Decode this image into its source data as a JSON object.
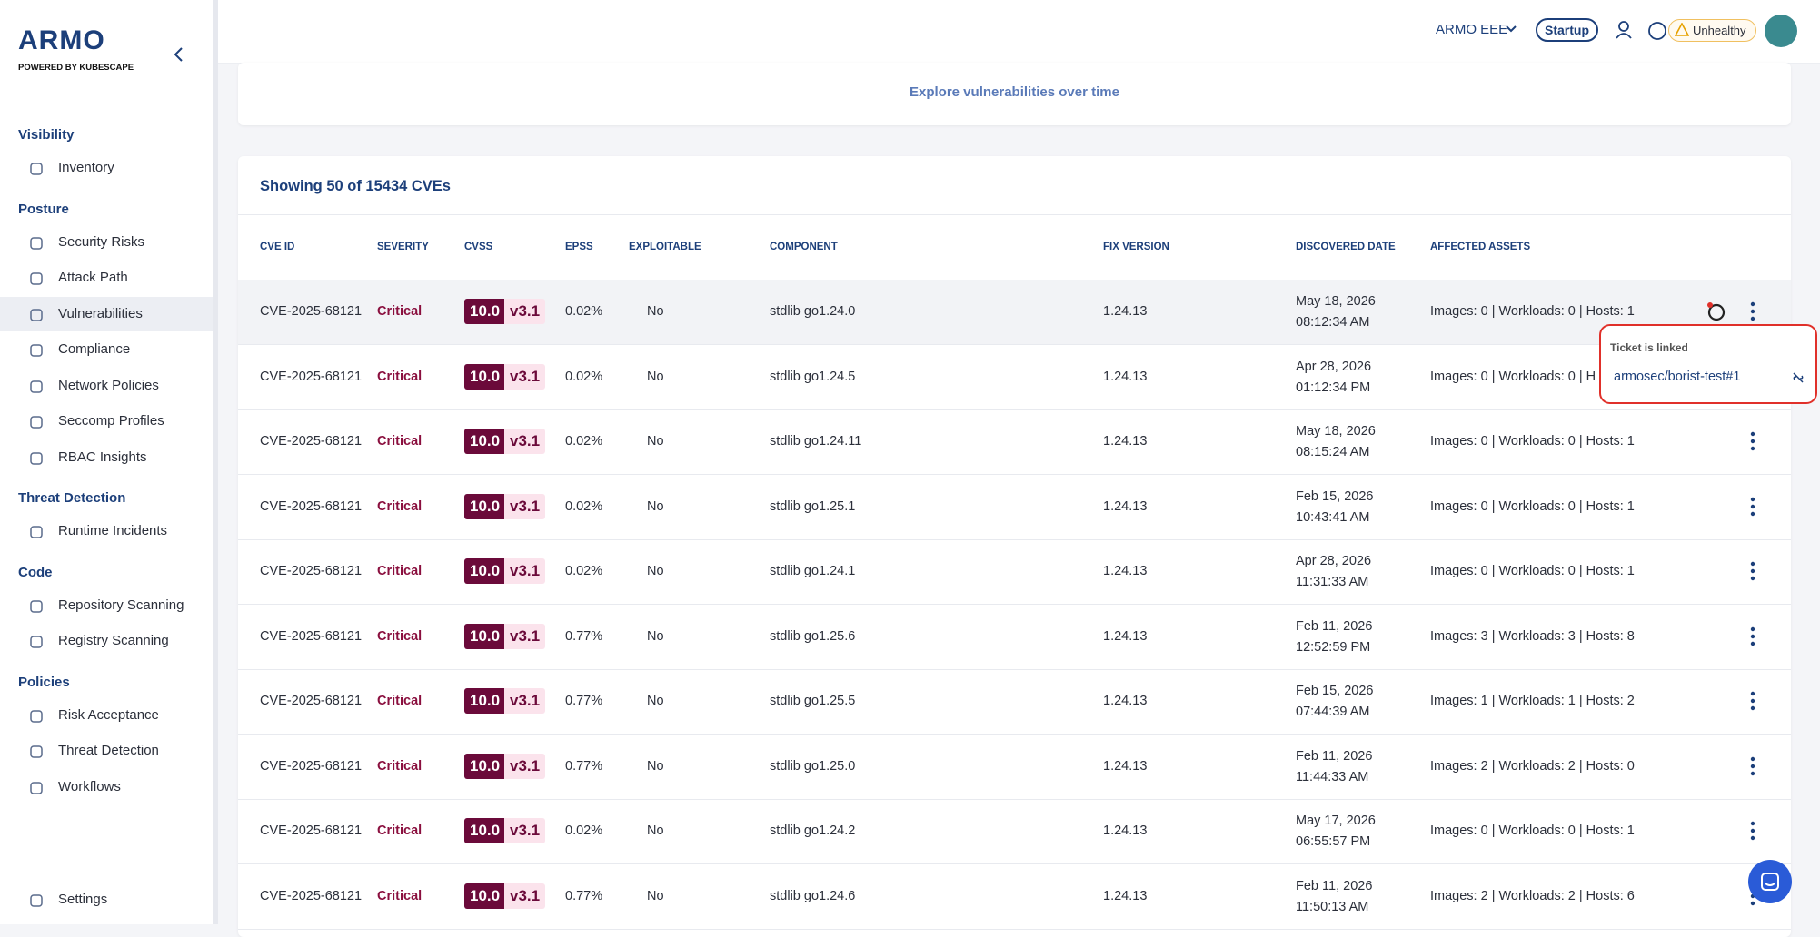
{
  "sidebar": {
    "logo": "ARMO",
    "tagline": "POWERED BY KUBESCAPE",
    "sections": [
      {
        "title": "Visibility",
        "items": [
          "Inventory"
        ]
      },
      {
        "title": "Posture",
        "items": [
          "Security Risks",
          "Attack Path",
          "Vulnerabilities",
          "Compliance",
          "Network Policies",
          "Seccomp Profiles",
          "RBAC Insights"
        ]
      },
      {
        "title": "Threat Detection",
        "items": [
          "Runtime Incidents"
        ]
      },
      {
        "title": "Code",
        "items": [
          "Repository Scanning",
          "Registry Scanning"
        ]
      },
      {
        "title": "Policies",
        "items": [
          "Risk Acceptance",
          "Threat Detection",
          "Workflows"
        ]
      }
    ],
    "settings": "Settings"
  },
  "topbar": {
    "account": "ARMO EEE",
    "plan": "Startup",
    "status": "Unhealthy"
  },
  "explore": "Explore vulnerabilities over time",
  "table": {
    "title": "Showing 50 of 15434 CVEs",
    "headers": [
      "CVE ID",
      "SEVERITY",
      "CVSS",
      "EPSS",
      "EXPLOITABLE",
      "COMPONENT",
      "FIX VERSION",
      "DISCOVERED DATE",
      "AFFECTED ASSETS"
    ],
    "rows": [
      [
        "CVE-2025-68121",
        "Critical",
        "10.0",
        "v3.1",
        "0.02%",
        "No",
        "stdlib go1.24.0",
        "1.24.13",
        "May 18, 2026",
        "08:12:34 AM",
        "Images: 0 | Workloads: 0 | Hosts: 1"
      ],
      [
        "CVE-2025-68121",
        "Critical",
        "10.0",
        "v3.1",
        "0.02%",
        "No",
        "stdlib go1.24.5",
        "1.24.13",
        "Apr 28, 2026",
        "01:12:34 PM",
        "Images: 0 | Workloads: 0 | H"
      ],
      [
        "CVE-2025-68121",
        "Critical",
        "10.0",
        "v3.1",
        "0.02%",
        "No",
        "stdlib go1.24.11",
        "1.24.13",
        "May 18, 2026",
        "08:15:24 AM",
        "Images: 0 | Workloads: 0 | Hosts: 1"
      ],
      [
        "CVE-2025-68121",
        "Critical",
        "10.0",
        "v3.1",
        "0.02%",
        "No",
        "stdlib go1.25.1",
        "1.24.13",
        "Feb 15, 2026",
        "10:43:41 AM",
        "Images: 0 | Workloads: 0 | Hosts: 1"
      ],
      [
        "CVE-2025-68121",
        "Critical",
        "10.0",
        "v3.1",
        "0.02%",
        "No",
        "stdlib go1.24.1",
        "1.24.13",
        "Apr 28, 2026",
        "11:31:33 AM",
        "Images: 0 | Workloads: 0 | Hosts: 1"
      ],
      [
        "CVE-2025-68121",
        "Critical",
        "10.0",
        "v3.1",
        "0.77%",
        "No",
        "stdlib go1.25.6",
        "1.24.13",
        "Feb 11, 2026",
        "12:52:59 PM",
        "Images: 3 | Workloads: 3 | Hosts: 8"
      ],
      [
        "CVE-2025-68121",
        "Critical",
        "10.0",
        "v3.1",
        "0.77%",
        "No",
        "stdlib go1.25.5",
        "1.24.13",
        "Feb 15, 2026",
        "07:44:39 AM",
        "Images: 1 | Workloads: 1 | Hosts: 2"
      ],
      [
        "CVE-2025-68121",
        "Critical",
        "10.0",
        "v3.1",
        "0.77%",
        "No",
        "stdlib go1.25.0",
        "1.24.13",
        "Feb 11, 2026",
        "11:44:33 AM",
        "Images: 2 | Workloads: 2 | Hosts: 0"
      ],
      [
        "CVE-2025-68121",
        "Critical",
        "10.0",
        "v3.1",
        "0.02%",
        "No",
        "stdlib go1.24.2",
        "1.24.13",
        "May 17, 2026",
        "06:55:57 PM",
        "Images: 0 | Workloads: 0 | Hosts: 1"
      ],
      [
        "CVE-2025-68121",
        "Critical",
        "10.0",
        "v3.1",
        "0.77%",
        "No",
        "stdlib go1.24.6",
        "1.24.13",
        "Feb 11, 2026",
        "11:50:13 AM",
        "Images: 2 | Workloads: 2 | Hosts: 6"
      ]
    ]
  },
  "popup": {
    "title": "Ticket is linked",
    "link": "armosec/borist-test#1"
  }
}
